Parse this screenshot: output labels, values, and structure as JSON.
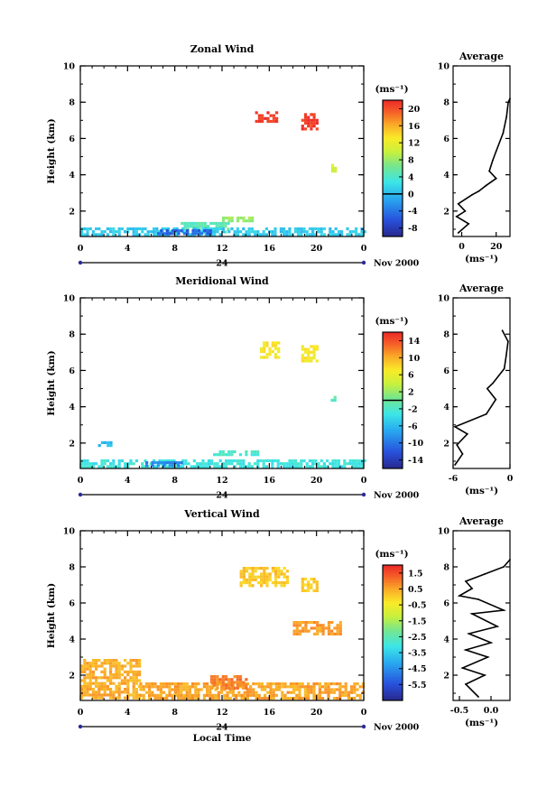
{
  "chart_data": [
    {
      "type": "heatmap",
      "title": "Zonal Wind",
      "ylabel": "Height (km)",
      "xlabel": "",
      "ylim": [
        0.6,
        10
      ],
      "yticks": [
        "2",
        "4",
        "6",
        "8",
        "10"
      ],
      "xlim": [
        0,
        24
      ],
      "xticks": [
        "0",
        "4",
        "8",
        "12",
        "16",
        "20",
        "0"
      ],
      "date_label": "24",
      "month_label": "Nov 2000",
      "colorbar": {
        "unit": "(ms⁻¹)",
        "min": -10,
        "max": 22,
        "ticks": [
          "20",
          "16",
          "12",
          "8",
          "4",
          "0",
          "-4",
          "-8"
        ],
        "zero_line": 0
      },
      "blobs": [
        {
          "t0": 14.8,
          "t1": 16.6,
          "h0": 6.9,
          "h1": 7.5,
          "v": 21
        },
        {
          "t0": 18.7,
          "t1": 20.0,
          "h0": 6.6,
          "h1": 7.4,
          "v": 21
        },
        {
          "t0": 21.0,
          "t1": 21.7,
          "h0": 4.2,
          "h1": 4.6,
          "v": 11
        },
        {
          "t0": 8.5,
          "t1": 12.5,
          "h0": 0.9,
          "h1": 1.4,
          "v": 5
        },
        {
          "t0": 12.0,
          "t1": 14.5,
          "h0": 1.4,
          "h1": 1.7,
          "v": 8
        },
        {
          "t0": 0.0,
          "t1": 24.0,
          "h0": 0.7,
          "h1": 1.1,
          "v": 1
        },
        {
          "t0": 6.5,
          "t1": 11.0,
          "h0": 0.7,
          "h1": 1.0,
          "v": -5
        }
      ],
      "average": {
        "title": "Average",
        "xlabel": "(ms⁻¹)",
        "xlim": [
          -5,
          28
        ],
        "xticks": [
          "0",
          "20"
        ],
        "xtick_values": [
          0,
          20
        ],
        "yticks": [
          "2",
          "4",
          "6",
          "8",
          "10"
        ],
        "profile": [
          [
            -2,
            0.8
          ],
          [
            4,
            1.3
          ],
          [
            -3,
            1.7
          ],
          [
            2,
            2.0
          ],
          [
            -2,
            2.4
          ],
          [
            6,
            2.9
          ],
          [
            10,
            3.1
          ],
          [
            14,
            3.4
          ],
          [
            20,
            3.8
          ],
          [
            16,
            4.2
          ],
          [
            18,
            4.8
          ],
          [
            20,
            5.3
          ],
          [
            24,
            6.3
          ],
          [
            26,
            7.2
          ],
          [
            27,
            8.0
          ],
          [
            28,
            8.2
          ]
        ]
      }
    },
    {
      "type": "heatmap",
      "title": "Meridional Wind",
      "ylabel": "Height (km)",
      "xlabel": "",
      "ylim": [
        0.6,
        10
      ],
      "yticks": [
        "2",
        "4",
        "6",
        "8",
        "10"
      ],
      "xlim": [
        0,
        24
      ],
      "xticks": [
        "0",
        "4",
        "8",
        "12",
        "16",
        "20",
        "0"
      ],
      "date_label": "24",
      "month_label": "Nov 2000",
      "colorbar": {
        "unit": "(ms⁻¹)",
        "min": -16,
        "max": 16,
        "ticks": [
          "14",
          "10",
          "6",
          "2",
          "-2",
          "-6",
          "-10",
          "-14"
        ],
        "zero_line": 0
      },
      "blobs": [
        {
          "t0": 15.2,
          "t1": 16.8,
          "h0": 6.8,
          "h1": 7.6,
          "v": 7
        },
        {
          "t0": 18.7,
          "t1": 20.0,
          "h0": 6.6,
          "h1": 7.4,
          "v": 7
        },
        {
          "t0": 21.2,
          "t1": 21.6,
          "h0": 4.4,
          "h1": 4.6,
          "v": -1
        },
        {
          "t0": 11.0,
          "t1": 15.0,
          "h0": 1.3,
          "h1": 1.6,
          "v": -2
        },
        {
          "t0": 0.0,
          "t1": 24.0,
          "h0": 0.7,
          "h1": 1.1,
          "v": -3
        },
        {
          "t0": 5.5,
          "t1": 8.5,
          "h0": 0.7,
          "h1": 1.0,
          "v": -9
        },
        {
          "t0": 1.5,
          "t1": 2.5,
          "h0": 1.9,
          "h1": 2.1,
          "v": -6
        }
      ],
      "average": {
        "title": "Average",
        "xlabel": "(ms⁻¹)",
        "xlim": [
          -6,
          0
        ],
        "xticks": [
          "-6",
          "0"
        ],
        "xtick_values": [
          -6,
          0
        ],
        "yticks": [
          "2",
          "4",
          "6",
          "8",
          "10"
        ],
        "profile": [
          [
            -5.8,
            0.8
          ],
          [
            -5.0,
            1.4
          ],
          [
            -5.6,
            1.9
          ],
          [
            -4.5,
            2.5
          ],
          [
            -5.8,
            2.9
          ],
          [
            -2.5,
            3.6
          ],
          [
            -1.5,
            4.4
          ],
          [
            -2.4,
            5.0
          ],
          [
            -1.8,
            5.3
          ],
          [
            -0.6,
            6.1
          ],
          [
            -0.4,
            6.8
          ],
          [
            -0.2,
            7.6
          ],
          [
            -0.8,
            8.2
          ]
        ]
      }
    },
    {
      "type": "heatmap",
      "title": "Vertical Wind",
      "ylabel": "Height (km)",
      "xlabel": "Local Time",
      "ylim": [
        0.6,
        10
      ],
      "yticks": [
        "2",
        "4",
        "6",
        "8",
        "10"
      ],
      "xlim": [
        0,
        24
      ],
      "xticks": [
        "0",
        "4",
        "8",
        "12",
        "16",
        "20",
        "0"
      ],
      "date_label": "24",
      "month_label": "Nov 2000",
      "colorbar": {
        "unit": "(ms⁻¹)",
        "min": -6.5,
        "max": 2.0,
        "ticks": [
          "1.5",
          "0.5",
          "-0.5",
          "-1.5",
          "-2.5",
          "-3.5",
          "-4.5",
          "-5.5"
        ],
        "zero_line": null
      },
      "blobs": [
        {
          "t0": 13.5,
          "t1": 17.5,
          "h0": 7.0,
          "h1": 8.0,
          "v": 0.1
        },
        {
          "t0": 18.7,
          "t1": 20.0,
          "h0": 6.6,
          "h1": 7.4,
          "v": 0.0
        },
        {
          "t0": 18.0,
          "t1": 22.0,
          "h0": 4.3,
          "h1": 5.0,
          "v": 0.6
        },
        {
          "t0": 0.0,
          "t1": 5.0,
          "h0": 0.7,
          "h1": 2.9,
          "v": 0.4
        },
        {
          "t0": 5.0,
          "t1": 24.0,
          "h0": 0.7,
          "h1": 1.6,
          "v": 0.5
        },
        {
          "t0": 11.0,
          "t1": 14.0,
          "h0": 1.2,
          "h1": 2.0,
          "v": 0.9
        }
      ],
      "average": {
        "title": "Average",
        "xlabel": "(ms⁻¹)",
        "xlim": [
          -0.6,
          0.3
        ],
        "xticks": [
          "-0.5",
          "0.0"
        ],
        "xtick_values": [
          -0.5,
          0.0
        ],
        "yticks": [
          "2",
          "4",
          "6",
          "8",
          "10"
        ],
        "profile": [
          [
            -0.2,
            0.8
          ],
          [
            -0.4,
            1.5
          ],
          [
            -0.1,
            2.0
          ],
          [
            -0.45,
            2.4
          ],
          [
            -0.05,
            3.0
          ],
          [
            -0.4,
            3.4
          ],
          [
            0.0,
            3.8
          ],
          [
            -0.35,
            4.3
          ],
          [
            0.1,
            4.7
          ],
          [
            -0.3,
            5.4
          ],
          [
            0.2,
            5.6
          ],
          [
            -0.2,
            6.2
          ],
          [
            -0.5,
            6.4
          ],
          [
            -0.3,
            6.8
          ],
          [
            -0.4,
            7.2
          ],
          [
            -0.1,
            7.6
          ],
          [
            0.2,
            8.0
          ],
          [
            0.3,
            8.4
          ]
        ]
      }
    }
  ]
}
